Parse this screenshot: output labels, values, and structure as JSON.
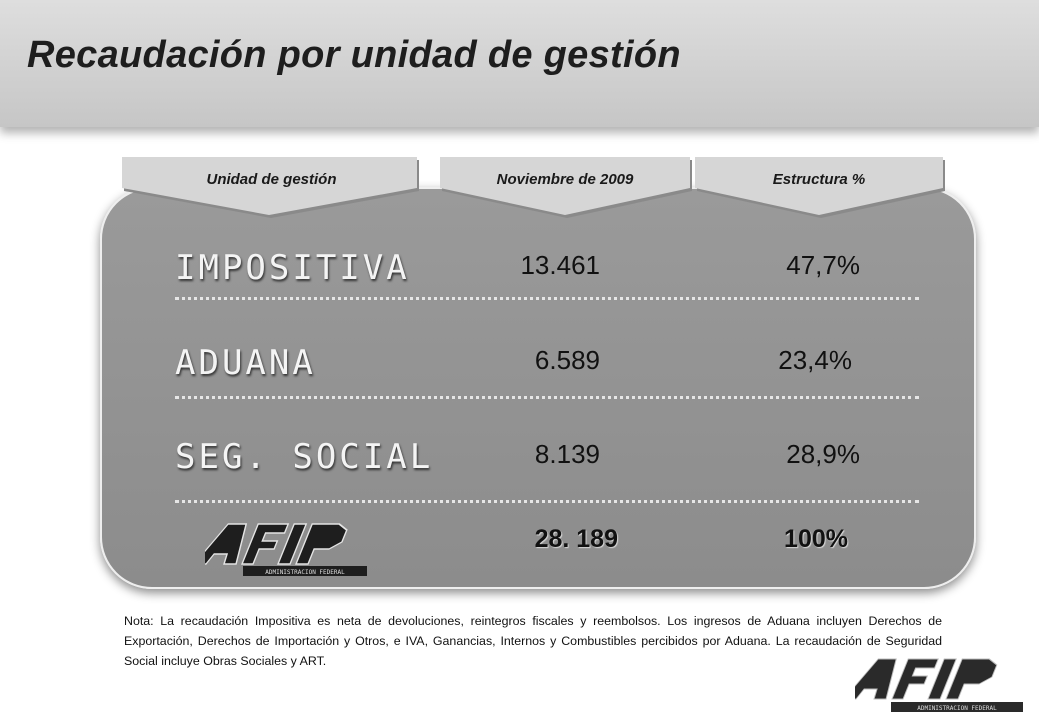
{
  "title": "Recaudación por unidad de gestión",
  "columns": [
    "Unidad de gestión",
    "Noviembre de 2009",
    "Estructura %"
  ],
  "rows": [
    {
      "label": "IMPOSITIVA",
      "amount": "13.461",
      "pct": "47,7%"
    },
    {
      "label": "ADUANA",
      "amount": "6.589",
      "pct": "23,4%"
    },
    {
      "label": "SEG. SOCIAL",
      "amount": "8.139",
      "pct": "28,9%"
    }
  ],
  "total": {
    "amount": "28. 189",
    "pct": "100%"
  },
  "logo": {
    "text": "AFIP",
    "caption": "ADMINISTRACION FEDERAL"
  },
  "note": "Nota: La recaudación Impositiva es neta de devoluciones, reintegros fiscales y reembolsos. Los ingresos de Aduana incluyen Derechos de Exportación, Derechos de Importación y Otros, e IVA, Ganancias, Internos y Combustibles percibidos por Aduana. La recaudación de Seguridad Social incluye Obras Sociales y ART.",
  "colors": {
    "header_bg": "#cfcfcf",
    "panel_bg": "#939393",
    "tab_bg": "#d4d4d4",
    "row_label": "#f4f4f4"
  }
}
